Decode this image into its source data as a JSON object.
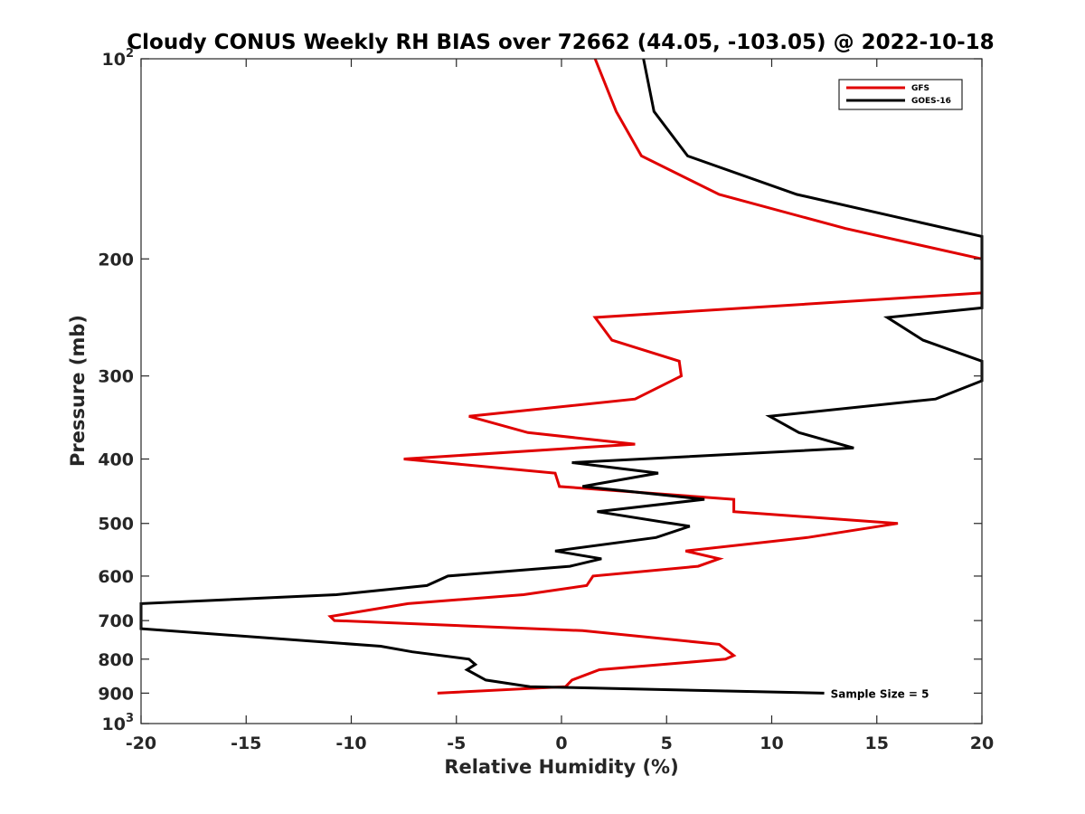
{
  "chart_data": {
    "type": "line",
    "title": "Cloudy CONUS Weekly RH BIAS over 72662 (44.05, -103.05) @ 2022-10-18",
    "xlabel": "Relative Humidity (%)",
    "ylabel": "Pressure (mb)",
    "xlim": [
      -20,
      20
    ],
    "ylim": [
      100,
      1000
    ],
    "yscale": "log",
    "y_reversed": true,
    "x_ticks": [
      {
        "value": -20,
        "label": "-20"
      },
      {
        "value": -15,
        "label": "-15"
      },
      {
        "value": -10,
        "label": "-10"
      },
      {
        "value": -5,
        "label": "-5"
      },
      {
        "value": 0,
        "label": "0"
      },
      {
        "value": 5,
        "label": "5"
      },
      {
        "value": 10,
        "label": "10"
      },
      {
        "value": 15,
        "label": "15"
      },
      {
        "value": 20,
        "label": "20"
      }
    ],
    "y_ticks": [
      {
        "value": 100,
        "base": "10",
        "exp": "2"
      },
      {
        "value": 200,
        "label": "200"
      },
      {
        "value": 300,
        "label": "300"
      },
      {
        "value": 400,
        "label": "400"
      },
      {
        "value": 500,
        "label": "500"
      },
      {
        "value": 600,
        "label": "600"
      },
      {
        "value": 700,
        "label": "700"
      },
      {
        "value": 800,
        "label": "800"
      },
      {
        "value": 900,
        "label": "900"
      },
      {
        "value": 1000,
        "base": "10",
        "exp": "3"
      }
    ],
    "grid": false,
    "legend_position": "top-right",
    "series": [
      {
        "name": "GFS",
        "color": "#e00000",
        "points": [
          [
            1.6,
            100
          ],
          [
            2.6,
            120
          ],
          [
            3.8,
            140
          ],
          [
            7.5,
            160
          ],
          [
            13.5,
            180
          ],
          [
            20,
            200
          ],
          [
            20,
            225
          ],
          [
            1.6,
            245
          ],
          [
            2.4,
            265
          ],
          [
            5.6,
            285
          ],
          [
            5.7,
            300
          ],
          [
            3.5,
            325
          ],
          [
            -4.4,
            345
          ],
          [
            -1.6,
            365
          ],
          [
            3.5,
            380
          ],
          [
            -7.5,
            400
          ],
          [
            -0.3,
            420
          ],
          [
            -0.1,
            440
          ],
          [
            8.2,
            460
          ],
          [
            8.2,
            480
          ],
          [
            16,
            500
          ],
          [
            11.7,
            525
          ],
          [
            5.9,
            550
          ],
          [
            7.5,
            565
          ],
          [
            6.5,
            580
          ],
          [
            1.5,
            600
          ],
          [
            1.2,
            620
          ],
          [
            -1.8,
            640
          ],
          [
            -7.3,
            660
          ],
          [
            -11.0,
            690
          ],
          [
            -10.8,
            700
          ],
          [
            1.0,
            725
          ],
          [
            7.5,
            760
          ],
          [
            8.2,
            790
          ],
          [
            7.8,
            800
          ],
          [
            1.8,
            830
          ],
          [
            0.5,
            860
          ],
          [
            0.2,
            880
          ],
          [
            -5.9,
            900
          ]
        ]
      },
      {
        "name": "GOES-16",
        "color": "#000000",
        "points": [
          [
            3.9,
            100
          ],
          [
            4.4,
            120
          ],
          [
            6.0,
            140
          ],
          [
            11.2,
            160
          ],
          [
            20,
            185
          ],
          [
            20,
            187
          ],
          [
            20,
            237
          ],
          [
            15.5,
            245
          ],
          [
            17.2,
            265
          ],
          [
            20,
            285
          ],
          [
            20,
            305
          ],
          [
            17.8,
            325
          ],
          [
            9.9,
            345
          ],
          [
            11.3,
            365
          ],
          [
            13.9,
            385
          ],
          [
            0.5,
            405
          ],
          [
            4.6,
            420
          ],
          [
            1.0,
            440
          ],
          [
            6.8,
            460
          ],
          [
            1.7,
            480
          ],
          [
            6.1,
            505
          ],
          [
            4.5,
            525
          ],
          [
            -0.3,
            550
          ],
          [
            1.9,
            565
          ],
          [
            0.4,
            580
          ],
          [
            -5.4,
            600
          ],
          [
            -6.4,
            620
          ],
          [
            -10.7,
            640
          ],
          [
            -20,
            660
          ],
          [
            -20,
            720
          ],
          [
            -8.6,
            765
          ],
          [
            -7.1,
            780
          ],
          [
            -4.4,
            800
          ],
          [
            -4.1,
            815
          ],
          [
            -4.5,
            830
          ],
          [
            -3.6,
            860
          ],
          [
            -1.5,
            880
          ],
          [
            12.5,
            900
          ]
        ]
      }
    ],
    "annotations": [
      {
        "text": "Sample Size = 5",
        "x": 12.8,
        "y": 900
      }
    ]
  }
}
